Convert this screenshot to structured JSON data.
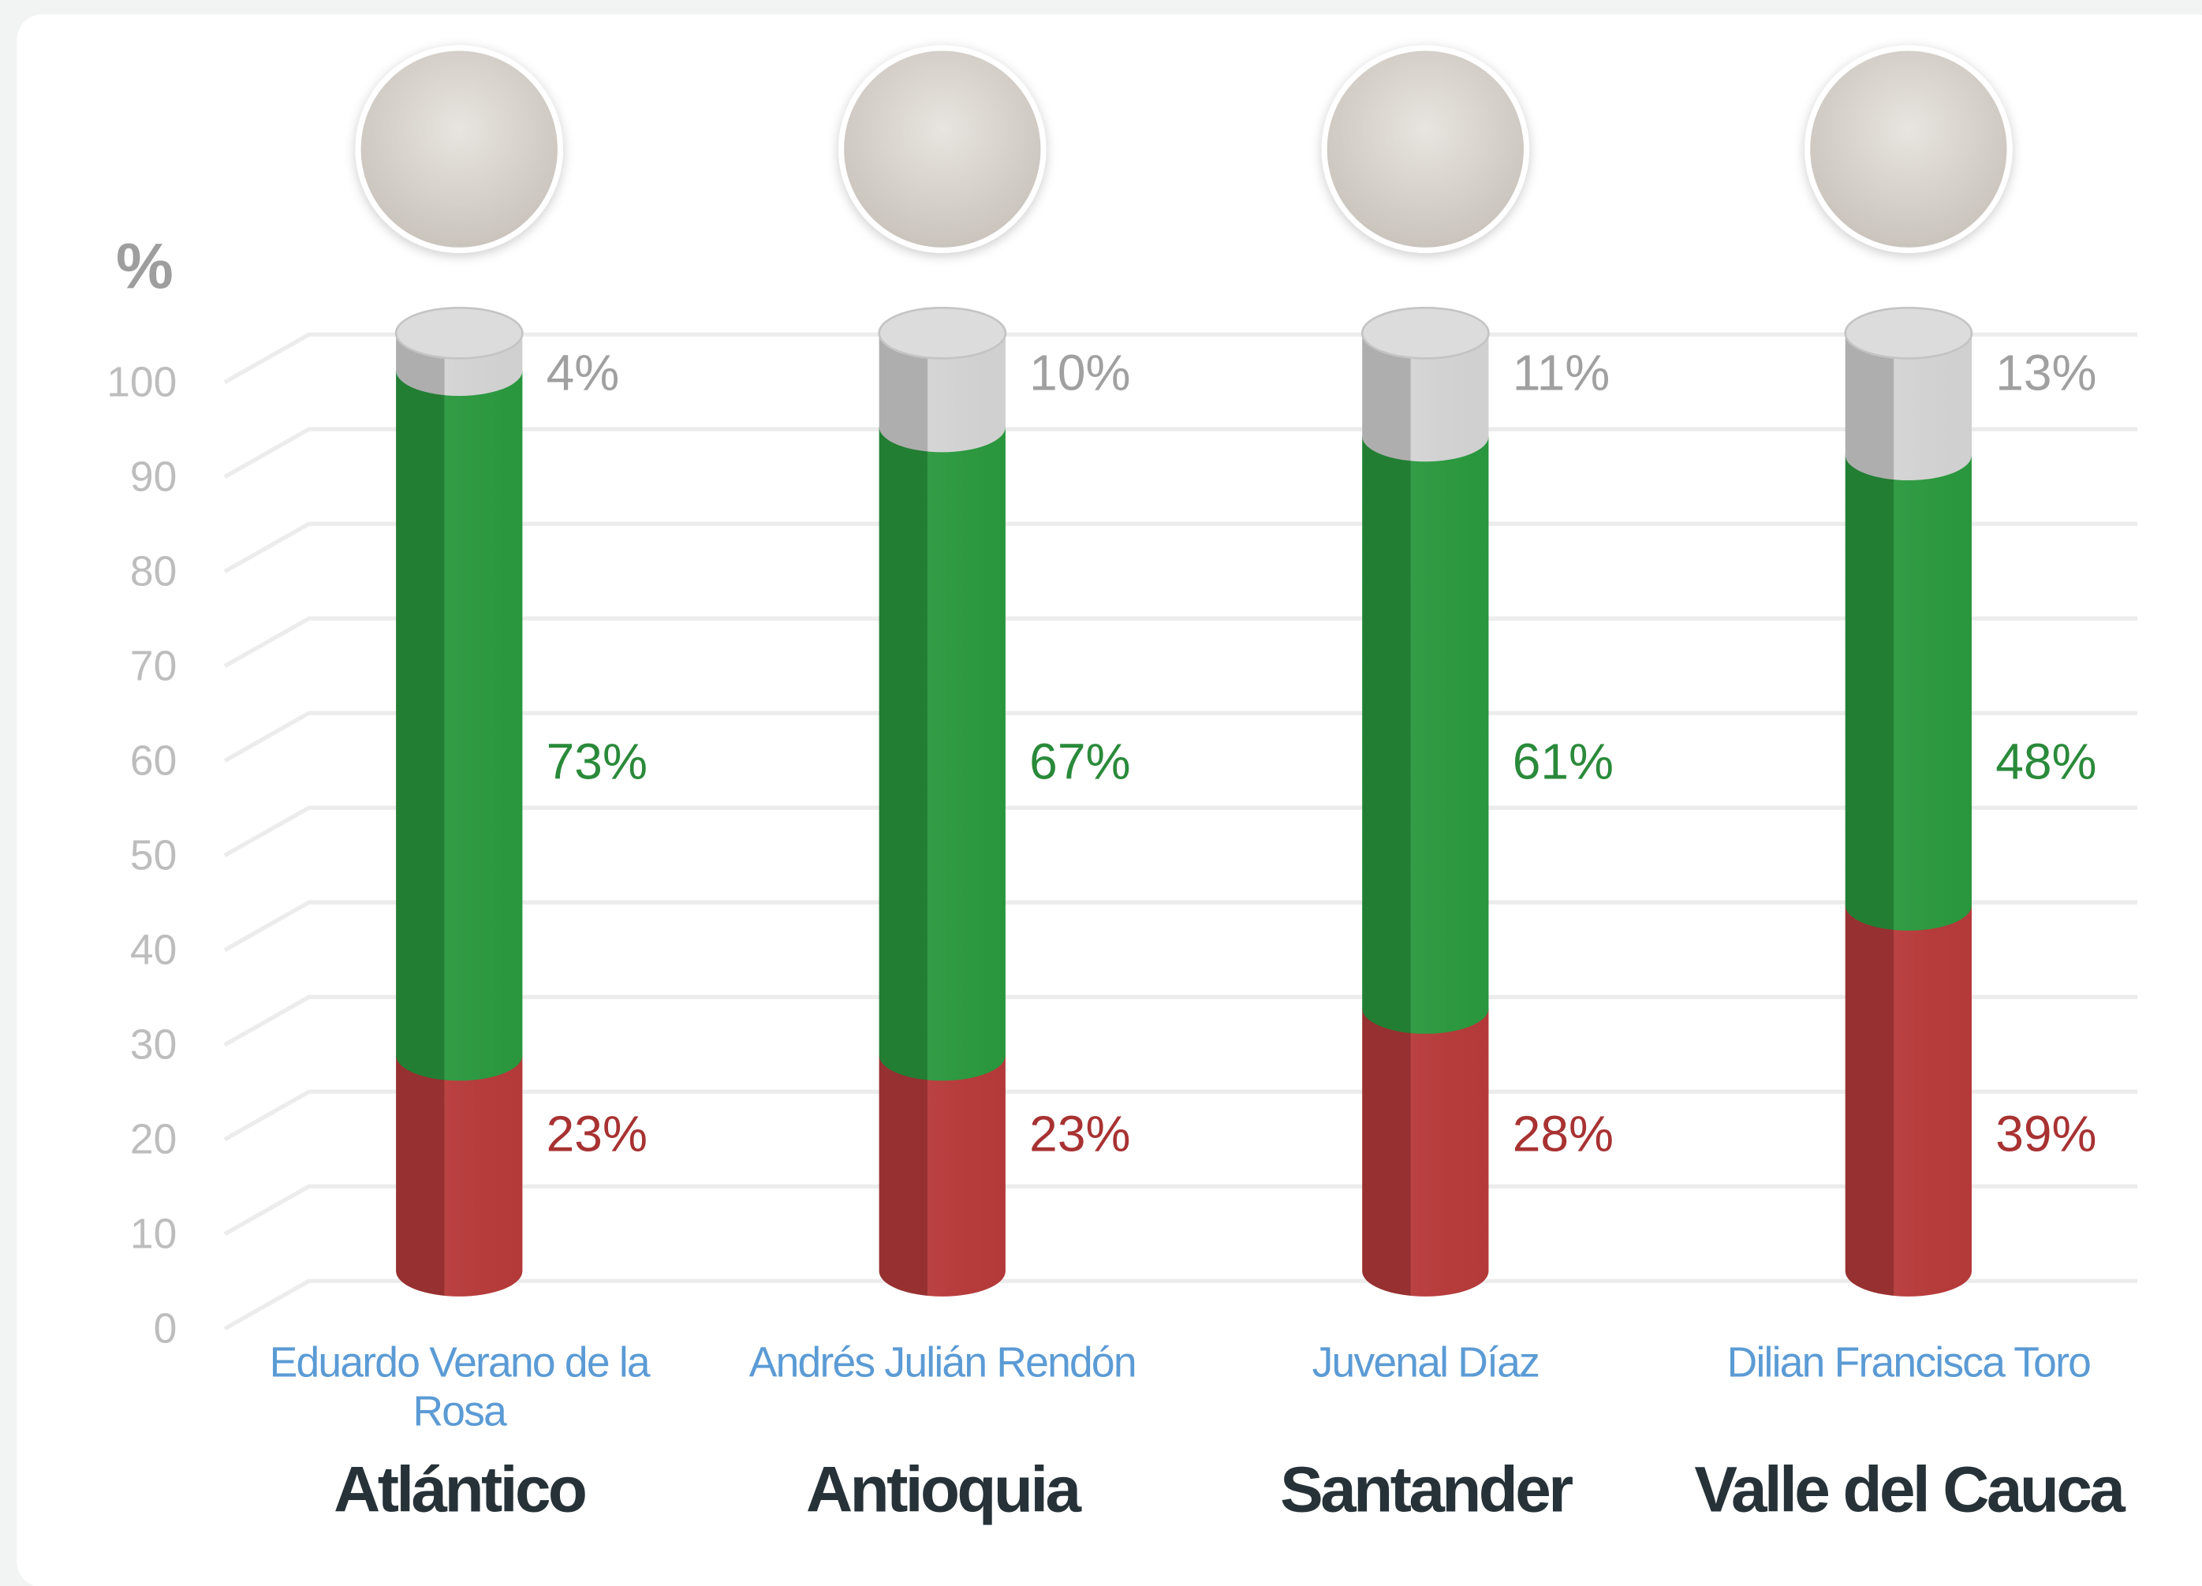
{
  "chart_data": {
    "type": "stacked_bar",
    "y_label": "%",
    "categories": [
      "Atlántico",
      "Antioquia",
      "Santander",
      "Valle del Cauca"
    ],
    "candidates": [
      "Eduardo Verano de la Rosa",
      "Andrés Julián Rendón",
      "Juvenal Díaz",
      "Dilian Francisca Toro"
    ],
    "series": [
      {
        "color": "#b83a3a",
        "label_color": "#a83232",
        "values": [
          23,
          23,
          28,
          39
        ],
        "value_labels": [
          "23%",
          "23%",
          "28%",
          "39%"
        ]
      },
      {
        "color": "#2a993e",
        "label_color": "#2a8a3a",
        "values": [
          73,
          67,
          61,
          48
        ],
        "value_labels": [
          "73%",
          "67%",
          "61%",
          "48%"
        ]
      },
      {
        "color": "#d4d4d4",
        "label_color": "#a0a0a0",
        "values": [
          4,
          10,
          11,
          13
        ],
        "value_labels": [
          "4%",
          "10%",
          "11%",
          "13%"
        ]
      }
    ],
    "ylim": [
      0,
      100
    ],
    "yticks": [
      0,
      10,
      20,
      30,
      40,
      50,
      60,
      70,
      80,
      90,
      100
    ],
    "grid": true
  }
}
